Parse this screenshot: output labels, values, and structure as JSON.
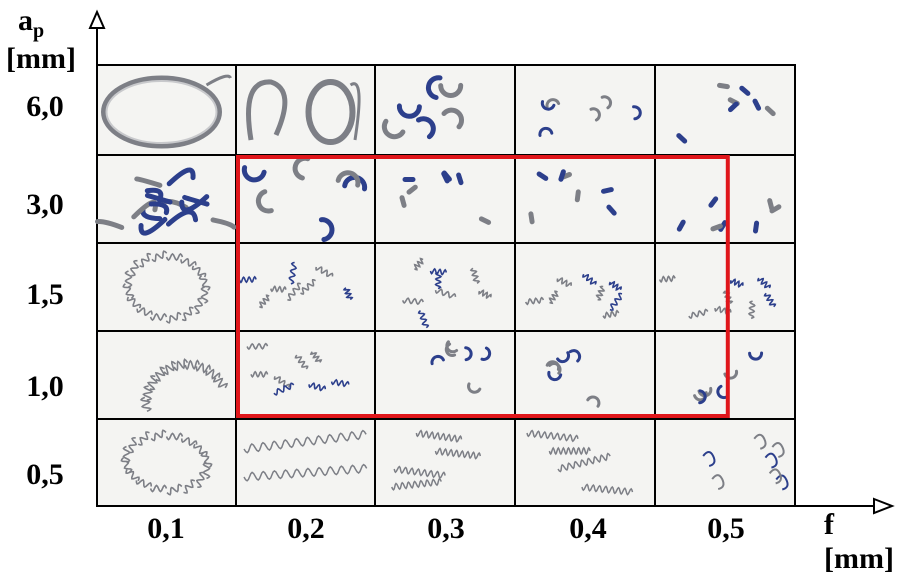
{
  "axes": {
    "y_symbol": "a",
    "y_subscript": "p",
    "y_unit": "[mm]",
    "x_label": "f [mm]"
  },
  "rows": [
    "6,0",
    "3,0",
    "1,5",
    "1,0",
    "0,5"
  ],
  "cols": [
    "0,1",
    "0,2",
    "0,3",
    "0,4",
    "0,5"
  ],
  "colors": {
    "grid": "#000000",
    "cell_bg": "#f4f4f2",
    "highlight": "#e0161b",
    "chip_blue": "#2c3f8c",
    "chip_gray": "#7d7f86"
  },
  "cells": [
    [
      "long-ribbon-loop-chip",
      "open-spiral-chip",
      "arc-chips",
      "small-arc-chips",
      "fragment-chips"
    ],
    [
      "tangled-chip",
      "arc-chips",
      "fragment-chips",
      "fragment-chips",
      "fragment-chips"
    ],
    [
      "helical-loop-chip",
      "short-helical-chips",
      "short-helical-chips",
      "short-helical-chips",
      "short-helical-chips"
    ],
    [
      "helical-arc-chip",
      "short-helical-chips",
      "comma-chips",
      "comma-chips",
      "comma-chips"
    ],
    [
      "helical-ring-chip",
      "long-helical-chips",
      "helical-tubular-chips",
      "helical-tubular-chips",
      "spiral-fragment-chips"
    ]
  ],
  "highlight_region": {
    "rows": [
      "3,0",
      "1,0"
    ],
    "cols": [
      "0,2",
      "0,5"
    ]
  }
}
